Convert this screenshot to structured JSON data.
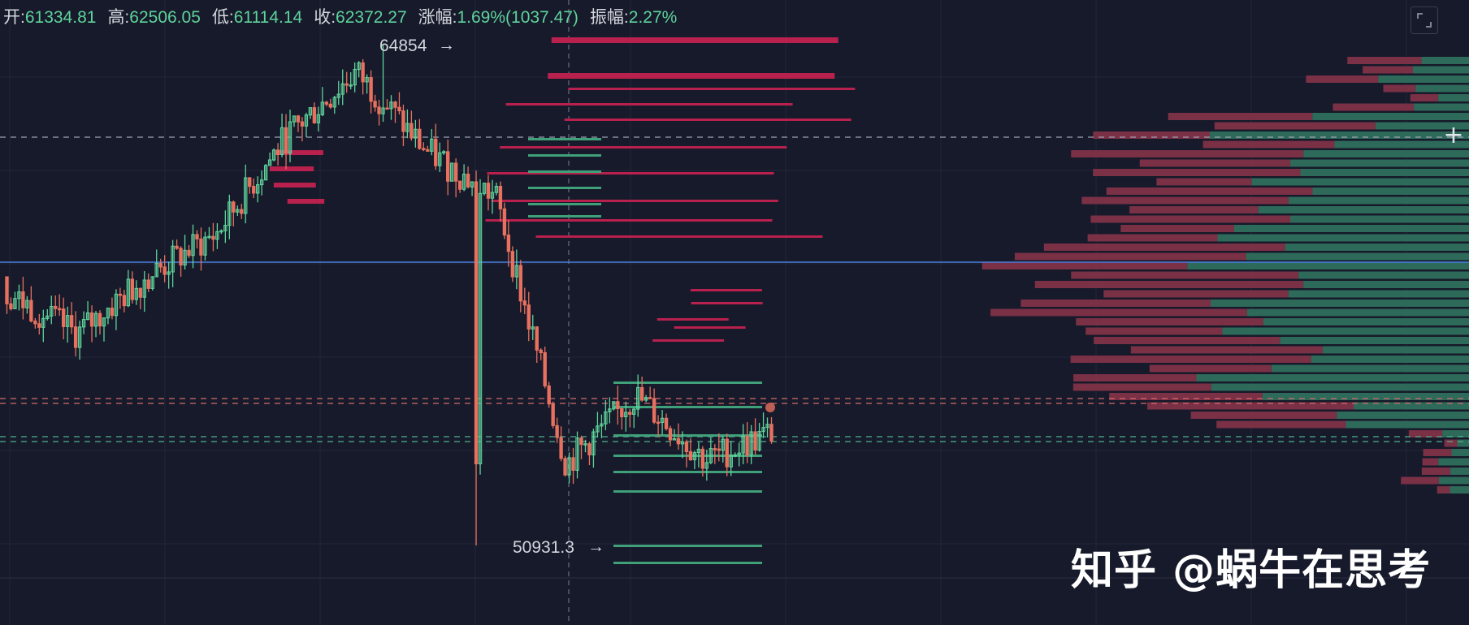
{
  "ohlc": {
    "open_label": "开:",
    "open": "61334.81",
    "high_label": "高:",
    "high": "62506.05",
    "low_label": "低:",
    "low": "61114.14",
    "close_label": "收:",
    "close": "62372.27",
    "change_label": "涨幅:",
    "change": "1.69%(1037.47)",
    "amp_label": "振幅:",
    "amp": "2.27%"
  },
  "labels": {
    "high_price": "64854",
    "low_price": "50931.3"
  },
  "watermark": "知乎 @蜗牛在思考",
  "colors": {
    "background": "#161a2a",
    "up": "#5fd39c",
    "down": "#e8705f",
    "profile_up": "#2e6a5a",
    "profile_down": "#7a3045",
    "sell_wall": "#b8204e",
    "buy_wall": "#3fa07a",
    "blue_line": "#4a7ee0"
  },
  "chart_data": {
    "type": "candlestick",
    "y_range": [
      50000,
      66000
    ],
    "candles_sample": [
      {
        "o": 58400,
        "h": 58900,
        "l": 57700,
        "c": 57950
      },
      {
        "o": 57950,
        "h": 58300,
        "l": 56400,
        "c": 56800
      },
      {
        "o": 56800,
        "h": 58700,
        "l": 56300,
        "c": 58400
      },
      {
        "o": 58400,
        "h": 59900,
        "l": 58300,
        "c": 59600
      },
      {
        "o": 59600,
        "h": 62800,
        "l": 59400,
        "c": 62300
      },
      {
        "o": 62300,
        "h": 64854,
        "l": 61900,
        "c": 64100
      },
      {
        "o": 64100,
        "h": 64400,
        "l": 61300,
        "c": 61900
      },
      {
        "o": 61900,
        "h": 62700,
        "l": 60400,
        "c": 60600
      },
      {
        "o": 60600,
        "h": 60900,
        "l": 50931.3,
        "c": 53200
      },
      {
        "o": 53200,
        "h": 56400,
        "l": 52400,
        "c": 55100
      },
      {
        "o": 55100,
        "h": 55700,
        "l": 52800,
        "c": 53300
      },
      {
        "o": 53300,
        "h": 54900,
        "l": 52600,
        "c": 54100
      }
    ],
    "high_marker": 64854,
    "low_marker": 50931.3,
    "levels": {
      "blue_line": 58500,
      "dash_white": 62400,
      "dash_red": [
        54390,
        54330
      ],
      "dash_green": [
        53870,
        53800
      ]
    }
  }
}
